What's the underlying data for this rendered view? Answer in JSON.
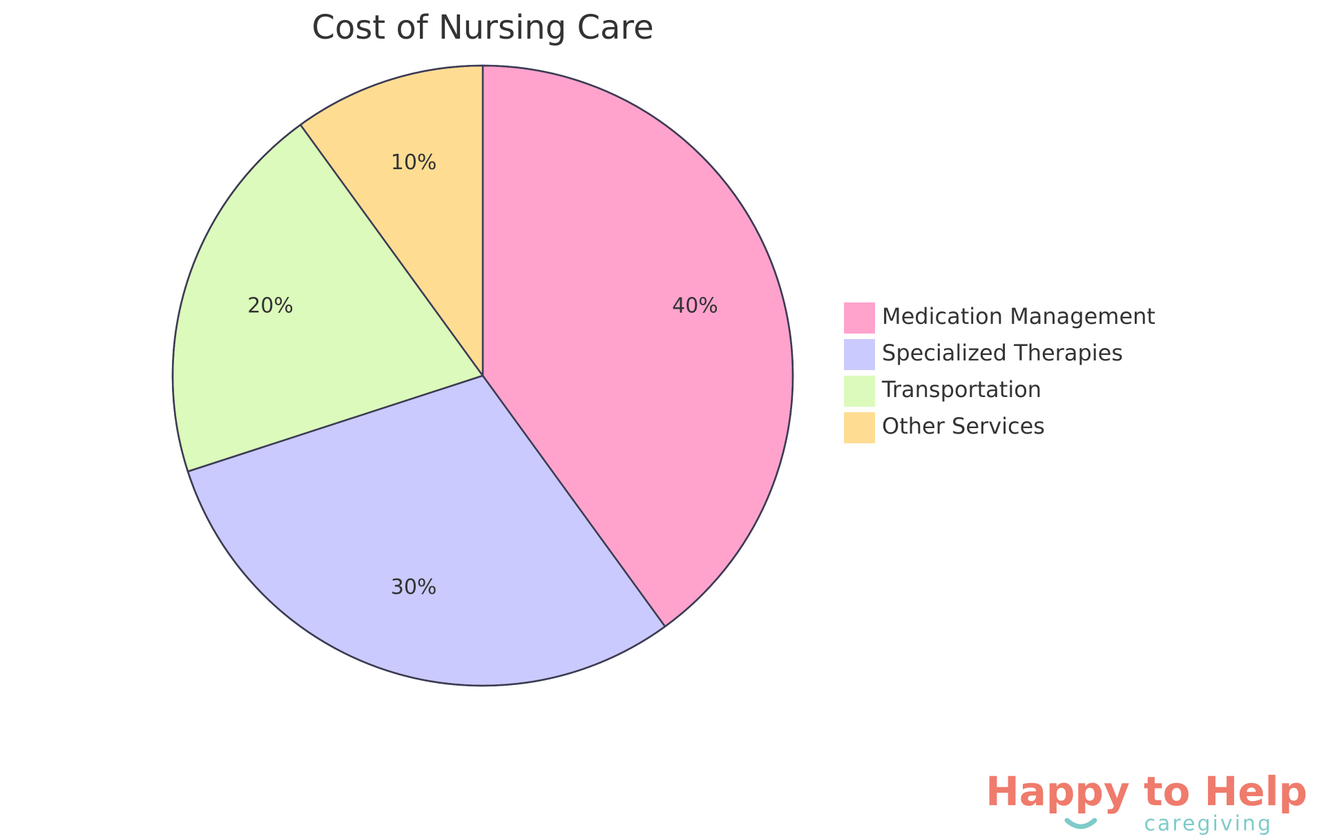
{
  "chart_data": {
    "type": "pie",
    "title": "Cost of Nursing Care",
    "categories": [
      "Medication Management",
      "Specialized Therapies",
      "Transportation",
      "Other Services"
    ],
    "values": [
      40,
      30,
      20,
      10
    ],
    "value_labels": [
      "40%",
      "30%",
      "20%",
      "10%"
    ],
    "colors": [
      "#ffa3cd",
      "#cacafe",
      "#dcfabb",
      "#fedd93"
    ],
    "legend": "right"
  },
  "logo": {
    "title": "Happy to Help",
    "subtitle": "caregiving"
  }
}
